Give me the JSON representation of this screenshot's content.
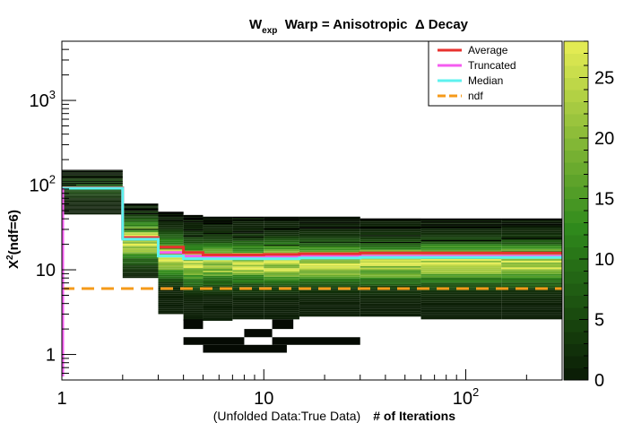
{
  "chart_data": {
    "type": "heatmap",
    "title": {
      "prefix": "W",
      "subscript": "exp",
      "rest": "  Warp = Anisotropic  Δ Decay"
    },
    "xlabel": {
      "prefix": "(Unfolded Data:True Data)",
      "main": "# of Iterations"
    },
    "ylabel": {
      "prefix": "X",
      "superscript": "2",
      "rest": "(ndf=6)"
    },
    "x_scale": "log",
    "y_scale": "log",
    "xlim": [
      1,
      300
    ],
    "ylim": [
      0.5,
      5000
    ],
    "x_ticks": [
      {
        "value": 1,
        "label": "1"
      },
      {
        "value": 10,
        "label": "10"
      },
      {
        "value": 100,
        "label": "10",
        "sup": "2"
      }
    ],
    "y_ticks": [
      {
        "value": 1,
        "label": "1"
      },
      {
        "value": 10,
        "label": "10"
      },
      {
        "value": 100,
        "label": "10",
        "sup": "2"
      },
      {
        "value": 1000,
        "label": "10",
        "sup": "3"
      }
    ],
    "colorbar": {
      "range": [
        0,
        28
      ],
      "ticks": [
        {
          "value": 0,
          "label": "0"
        },
        {
          "value": 5,
          "label": "5"
        },
        {
          "value": 10,
          "label": "10"
        },
        {
          "value": 15,
          "label": "15"
        },
        {
          "value": 20,
          "label": "20"
        },
        {
          "value": 25,
          "label": "25"
        }
      ],
      "low_color": "#0a1a05",
      "mid_color": "#2f8a1c",
      "high_color": "#e8ee55"
    },
    "heatmap_columns": [
      {
        "x0": 1,
        "x1": 2,
        "ymin": 45,
        "ymax": 150,
        "peak": 95
      },
      {
        "x0": 2,
        "x1": 3,
        "ymin": 8,
        "ymax": 60,
        "peak": 22
      },
      {
        "x0": 3,
        "x1": 4,
        "ymin": 3,
        "ymax": 48,
        "peak": 14
      },
      {
        "x0": 4,
        "x1": 5,
        "ymin": 2.5,
        "ymax": 44,
        "peak": 12
      },
      {
        "x0": 5,
        "x1": 7,
        "ymin": 2.5,
        "ymax": 42,
        "peak": 12
      },
      {
        "x0": 7,
        "x1": 10,
        "ymin": 2.6,
        "ymax": 42,
        "peak": 12
      },
      {
        "x0": 10,
        "x1": 15,
        "ymin": 2.6,
        "ymax": 42,
        "peak": 12
      },
      {
        "x0": 15,
        "x1": 30,
        "ymin": 2.8,
        "ymax": 42,
        "peak": 12
      },
      {
        "x0": 30,
        "x1": 60,
        "ymin": 2.8,
        "ymax": 40,
        "peak": 12
      },
      {
        "x0": 60,
        "x1": 150,
        "ymin": 2.6,
        "ymax": 40,
        "peak": 12
      },
      {
        "x0": 150,
        "x1": 300,
        "ymin": 2.6,
        "ymax": 40,
        "peak": 12
      }
    ],
    "low_outliers": [
      {
        "x0": 4,
        "x1": 5,
        "y0": 2.0,
        "y1": 2.6
      },
      {
        "x0": 11,
        "x1": 14,
        "y0": 2.0,
        "y1": 2.6
      },
      {
        "x0": 8,
        "x1": 11,
        "y0": 1.6,
        "y1": 2.0
      },
      {
        "x0": 4,
        "x1": 8,
        "y0": 1.3,
        "y1": 1.6
      },
      {
        "x0": 11,
        "x1": 30,
        "y0": 1.3,
        "y1": 1.6
      },
      {
        "x0": 5,
        "x1": 13,
        "y0": 1.05,
        "y1": 1.3
      }
    ],
    "legend": {
      "position": "top-right",
      "entries": [
        {
          "label": "Average",
          "color": "#e8312e",
          "style": "solid"
        },
        {
          "label": "Truncated",
          "color": "#f55cf0",
          "style": "solid"
        },
        {
          "label": "Median",
          "color": "#5ef2ef",
          "style": "solid"
        },
        {
          "label": "ndf",
          "color": "#f59a1a",
          "style": "dashed"
        }
      ]
    },
    "series": [
      {
        "name": "Truncated",
        "color": "#f55cf0",
        "x": [
          1,
          2,
          3,
          4,
          5,
          7,
          10,
          15,
          30,
          60,
          150,
          300
        ],
        "y": [
          92,
          24,
          16,
          14.5,
          14,
          14,
          14.2,
          14.5,
          14.5,
          14.5,
          14.5,
          14.5
        ]
      },
      {
        "name": "Average",
        "color": "#e8312e",
        "x": [
          1,
          2,
          3,
          4,
          5,
          7,
          10,
          15,
          30,
          60,
          150,
          300
        ],
        "y": [
          93,
          24,
          18.5,
          16,
          15,
          15,
          15.2,
          15.5,
          15.8,
          15.8,
          15.8,
          15.8
        ]
      },
      {
        "name": "Median",
        "color": "#5ef2ef",
        "x": [
          1,
          2,
          3,
          4,
          5,
          7,
          10,
          15,
          30,
          60,
          150,
          300
        ],
        "y": [
          92,
          23,
          14.5,
          13.5,
          13.5,
          13.5,
          13.5,
          13.8,
          14,
          14,
          14,
          14
        ]
      },
      {
        "name": "ndf",
        "color": "#f59a1a",
        "x": [
          1,
          300
        ],
        "y": [
          6,
          6
        ]
      }
    ]
  }
}
